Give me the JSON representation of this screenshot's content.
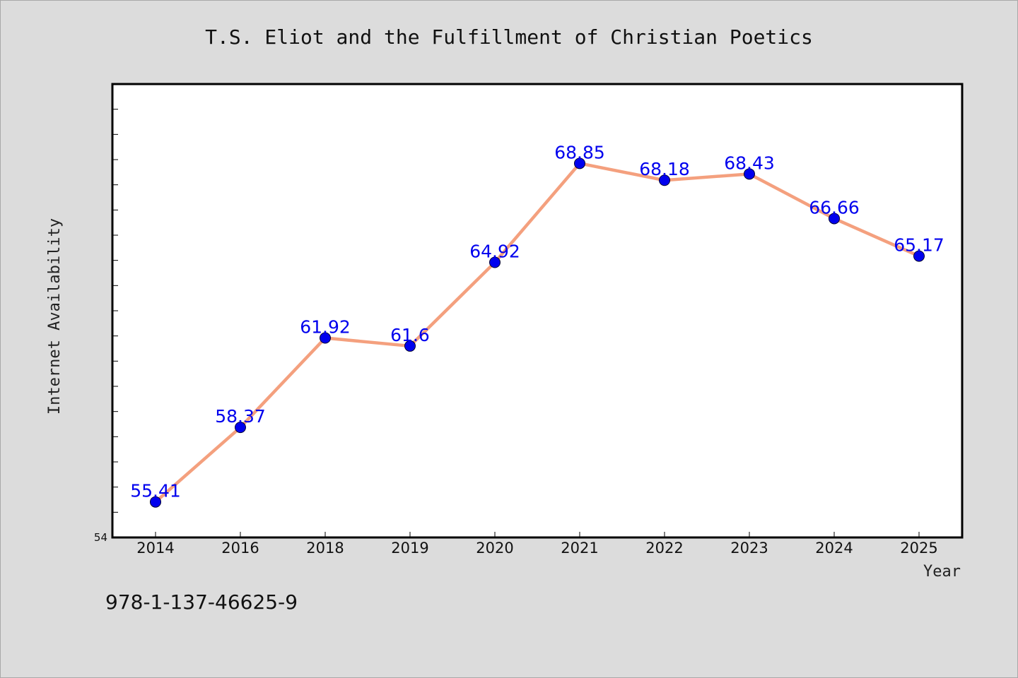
{
  "chart_data": {
    "type": "line",
    "title": "T.S. Eliot and the Fulfillment of Christian Poetics",
    "xlabel": "Year",
    "ylabel": "Internet Availability",
    "categories": [
      "2014",
      "2016",
      "2018",
      "2019",
      "2020",
      "2021",
      "2022",
      "2023",
      "2024",
      "2025"
    ],
    "series": [
      {
        "values": [
          55.41,
          58.37,
          61.92,
          61.6,
          64.92,
          68.85,
          68.18,
          68.43,
          66.66,
          65.17
        ],
        "point_labels": [
          "55.41",
          "58.37",
          "61.92",
          "61.6",
          "64.92",
          "68.85",
          "68.18",
          "68.43",
          "66.66",
          "65.17"
        ]
      }
    ],
    "ylim": [
      54,
      72
    ],
    "ytick_labels": [
      "54"
    ],
    "grid": false,
    "legend": "none",
    "colors": {
      "line": "#f4a07e",
      "marker": "#0000ee",
      "label": "#0000ee",
      "plot_background": "#ffffff",
      "figure_background": "#dcdcdc"
    }
  },
  "footer": {
    "isbn": "978-1-137-46625-9"
  }
}
